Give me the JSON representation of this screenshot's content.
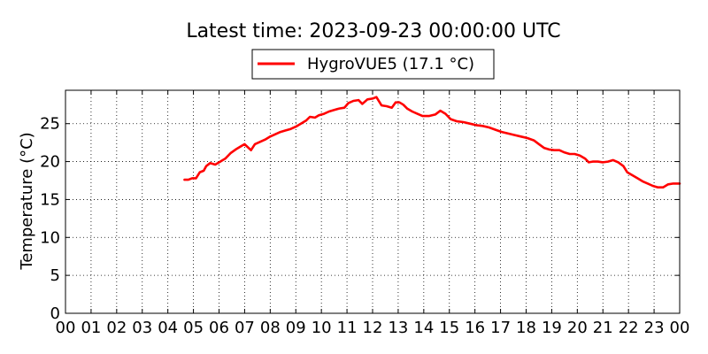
{
  "chart_data": {
    "type": "line",
    "title": "Latest time: 2023-09-23 00:00:00 UTC",
    "xlabel": "",
    "ylabel": "Temperature (°C)",
    "x_unit": "hour",
    "xlim": [
      0,
      24
    ],
    "ylim": [
      0,
      29.4
    ],
    "x_ticks": [
      0,
      1,
      2,
      3,
      4,
      5,
      6,
      7,
      8,
      9,
      10,
      11,
      12,
      13,
      14,
      15,
      16,
      17,
      18,
      19,
      20,
      21,
      22,
      23,
      24
    ],
    "x_tick_labels": [
      "00",
      "01",
      "02",
      "03",
      "04",
      "05",
      "06",
      "07",
      "08",
      "09",
      "10",
      "11",
      "12",
      "13",
      "14",
      "15",
      "16",
      "17",
      "18",
      "19",
      "20",
      "21",
      "22",
      "23",
      "00"
    ],
    "y_ticks": [
      0,
      5,
      10,
      15,
      20,
      25
    ],
    "y_tick_labels": [
      "0",
      "5",
      "10",
      "15",
      "20",
      "25"
    ],
    "grid": true,
    "legend_position": "top-center",
    "series": [
      {
        "name": "HygroVUE5 (17.1 °C)",
        "color": "#ff0000",
        "points": [
          [
            4.65,
            17.6
          ],
          [
            4.8,
            17.6
          ],
          [
            4.95,
            17.8
          ],
          [
            5.1,
            17.8
          ],
          [
            5.25,
            18.6
          ],
          [
            5.4,
            18.8
          ],
          [
            5.5,
            19.4
          ],
          [
            5.65,
            19.8
          ],
          [
            5.85,
            19.6
          ],
          [
            6.05,
            20.0
          ],
          [
            6.25,
            20.4
          ],
          [
            6.45,
            21.1
          ],
          [
            6.65,
            21.6
          ],
          [
            6.85,
            22.0
          ],
          [
            7.0,
            22.3
          ],
          [
            7.15,
            21.8
          ],
          [
            7.25,
            21.5
          ],
          [
            7.4,
            22.3
          ],
          [
            7.6,
            22.6
          ],
          [
            7.8,
            22.9
          ],
          [
            8.0,
            23.3
          ],
          [
            8.2,
            23.6
          ],
          [
            8.4,
            23.9
          ],
          [
            8.6,
            24.1
          ],
          [
            8.8,
            24.3
          ],
          [
            9.0,
            24.6
          ],
          [
            9.2,
            25.0
          ],
          [
            9.4,
            25.4
          ],
          [
            9.55,
            25.9
          ],
          [
            9.75,
            25.8
          ],
          [
            9.9,
            26.1
          ],
          [
            10.1,
            26.3
          ],
          [
            10.3,
            26.6
          ],
          [
            10.5,
            26.8
          ],
          [
            10.7,
            27.0
          ],
          [
            10.9,
            27.1
          ],
          [
            11.05,
            27.7
          ],
          [
            11.25,
            28.0
          ],
          [
            11.45,
            28.1
          ],
          [
            11.6,
            27.6
          ],
          [
            11.8,
            28.2
          ],
          [
            12.0,
            28.3
          ],
          [
            12.15,
            28.5
          ],
          [
            12.35,
            27.4
          ],
          [
            12.55,
            27.3
          ],
          [
            12.75,
            27.1
          ],
          [
            12.9,
            27.8
          ],
          [
            13.05,
            27.8
          ],
          [
            13.2,
            27.5
          ],
          [
            13.35,
            27.0
          ],
          [
            13.55,
            26.6
          ],
          [
            13.75,
            26.3
          ],
          [
            13.95,
            26.0
          ],
          [
            14.2,
            26.0
          ],
          [
            14.45,
            26.2
          ],
          [
            14.65,
            26.7
          ],
          [
            14.85,
            26.3
          ],
          [
            15.05,
            25.6
          ],
          [
            15.3,
            25.3
          ],
          [
            15.55,
            25.2
          ],
          [
            15.8,
            25.0
          ],
          [
            16.05,
            24.8
          ],
          [
            16.3,
            24.7
          ],
          [
            16.55,
            24.5
          ],
          [
            16.8,
            24.2
          ],
          [
            17.05,
            23.9
          ],
          [
            17.3,
            23.7
          ],
          [
            17.55,
            23.5
          ],
          [
            17.8,
            23.3
          ],
          [
            18.05,
            23.1
          ],
          [
            18.3,
            22.8
          ],
          [
            18.5,
            22.3
          ],
          [
            18.7,
            21.8
          ],
          [
            18.9,
            21.6
          ],
          [
            19.1,
            21.5
          ],
          [
            19.3,
            21.5
          ],
          [
            19.5,
            21.2
          ],
          [
            19.7,
            21.0
          ],
          [
            19.9,
            21.0
          ],
          [
            20.1,
            20.8
          ],
          [
            20.3,
            20.4
          ],
          [
            20.45,
            19.9
          ],
          [
            20.6,
            20.0
          ],
          [
            20.8,
            20.0
          ],
          [
            21.0,
            19.9
          ],
          [
            21.2,
            20.0
          ],
          [
            21.4,
            20.2
          ],
          [
            21.6,
            19.9
          ],
          [
            21.8,
            19.4
          ],
          [
            21.95,
            18.6
          ],
          [
            22.15,
            18.2
          ],
          [
            22.35,
            17.8
          ],
          [
            22.55,
            17.4
          ],
          [
            22.75,
            17.1
          ],
          [
            22.95,
            16.8
          ],
          [
            23.15,
            16.6
          ],
          [
            23.35,
            16.6
          ],
          [
            23.55,
            17.0
          ],
          [
            23.75,
            17.1
          ],
          [
            24.0,
            17.1
          ]
        ]
      }
    ]
  }
}
